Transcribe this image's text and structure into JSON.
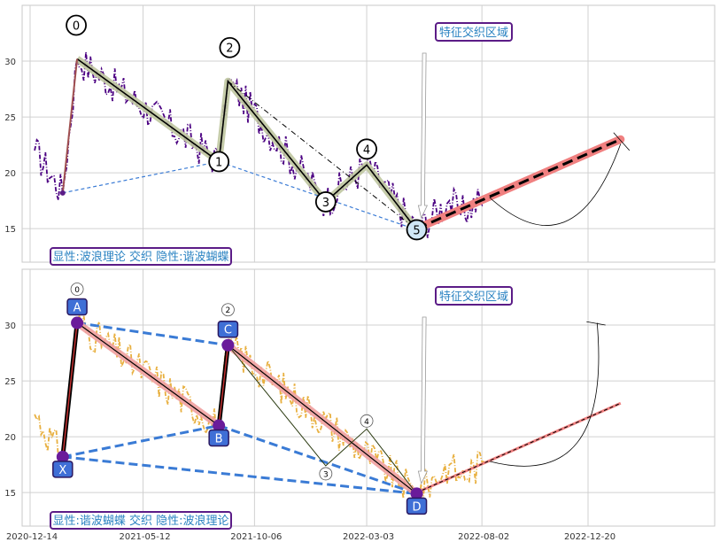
{
  "chart_data": [
    {
      "type": "line",
      "x_dates": [
        "2020-12-14",
        "2021-05-12",
        "2021-10-06",
        "2022-03-03",
        "2022-08-02",
        "2022-12-20"
      ],
      "ylim": [
        12,
        35
      ],
      "yticks": [
        15,
        20,
        25,
        30
      ],
      "grid": true,
      "colors": {
        "price": "#4b0082",
        "wave": "#000000",
        "band": "#bfc7a0",
        "projection": "#f08080",
        "harmonic": "#3a7bd5"
      },
      "annotation": "特征交织区域",
      "caption": "显性:波浪理论 交织 隐性:谐波蝴蝶",
      "wave_points": [
        {
          "label": "0",
          "x": "2021-02-14",
          "y": 30.2
        },
        {
          "label": "1",
          "x": "2021-08-20",
          "y": 21.0
        },
        {
          "label": "2",
          "x": "2021-09-01",
          "y": 28.2
        },
        {
          "label": "3",
          "x": "2022-01-08",
          "y": 17.4
        },
        {
          "label": "4",
          "x": "2022-03-03",
          "y": 20.7
        },
        {
          "label": "5",
          "x": "2022-05-08",
          "y": 14.9
        }
      ],
      "harmonic_points": [
        {
          "x": "2021-01-26",
          "y": 18.2
        },
        {
          "x": "2021-08-20",
          "y": 21.0
        },
        {
          "x": "2022-05-08",
          "y": 14.9
        }
      ],
      "projection": [
        {
          "x": "2022-05-08",
          "y": 15.0
        },
        {
          "x": "2023-02-01",
          "y": 23.0
        }
      ]
    },
    {
      "type": "line",
      "x_dates": [
        "2020-12-14",
        "2021-05-12",
        "2021-10-06",
        "2022-03-03",
        "2022-08-02",
        "2022-12-20"
      ],
      "ylim": [
        12,
        35
      ],
      "yticks": [
        15,
        20,
        25,
        30
      ],
      "grid": true,
      "colors": {
        "price": "#e8b040",
        "harmonic": "#3a7bd5",
        "band": "#f0a0a0",
        "projection": "#f08080"
      },
      "annotation": "特征交织区域",
      "caption": "显性:谐波蝴蝶 交织 隐性:波浪理论",
      "harmonic_points": [
        {
          "label": "X",
          "x": "2021-01-26",
          "y": 18.2
        },
        {
          "label": "A",
          "x": "2021-02-14",
          "y": 30.2
        },
        {
          "label": "B",
          "x": "2021-08-20",
          "y": 21.0
        },
        {
          "label": "C",
          "x": "2021-09-01",
          "y": 28.2
        },
        {
          "label": "D",
          "x": "2022-05-08",
          "y": 14.9
        }
      ],
      "wave_small": [
        {
          "label": "0",
          "x": "2021-02-14",
          "y": 30.2
        },
        {
          "label": "2",
          "x": "2021-09-01",
          "y": 28.2
        },
        {
          "label": "3",
          "x": "2022-01-08",
          "y": 17.4
        },
        {
          "label": "4",
          "x": "2022-03-03",
          "y": 20.7
        }
      ],
      "projection": [
        {
          "x": "2022-05-08",
          "y": 15.0
        },
        {
          "x": "2023-02-01",
          "y": 23.0
        }
      ]
    }
  ]
}
